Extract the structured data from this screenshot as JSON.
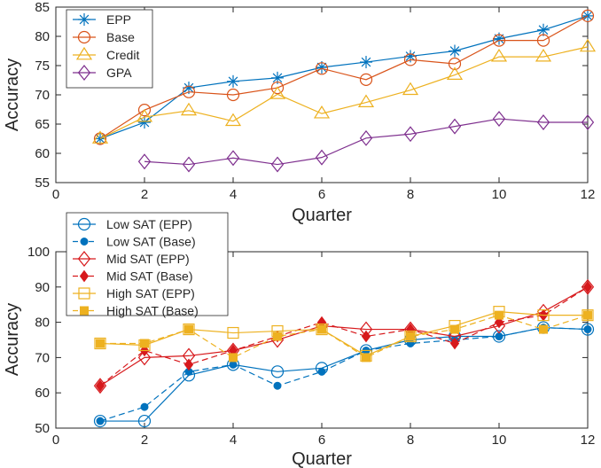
{
  "chart_data": [
    {
      "type": "line",
      "title": "",
      "xlabel": "Quarter",
      "ylabel": "Accuracy",
      "xlim": [
        0,
        12
      ],
      "ylim": [
        55,
        85
      ],
      "xticks": [
        0,
        2,
        4,
        6,
        8,
        10,
        12
      ],
      "yticks": [
        55,
        60,
        65,
        70,
        75,
        80,
        85
      ],
      "legend_position": "top-left",
      "grid": false,
      "series": [
        {
          "name": "EPP",
          "color": "#0072BD",
          "marker": "asterisk",
          "line": "solid",
          "x": [
            1,
            2,
            3,
            4,
            5,
            6,
            7,
            8,
            9,
            10,
            11,
            12
          ],
          "values": [
            62.5,
            65.3,
            71.2,
            72.3,
            72.9,
            74.7,
            75.6,
            76.6,
            77.5,
            79.6,
            81.1,
            83.5
          ]
        },
        {
          "name": "Base",
          "color": "#D95319",
          "marker": "circle",
          "line": "solid",
          "x": [
            1,
            2,
            3,
            4,
            5,
            6,
            7,
            8,
            9,
            10,
            11,
            12
          ],
          "values": [
            62.5,
            67.4,
            70.5,
            70.0,
            71.2,
            74.5,
            72.6,
            76.0,
            75.3,
            79.3,
            79.3,
            83.5
          ]
        },
        {
          "name": "Credit",
          "color": "#EDB120",
          "marker": "triangle",
          "line": "solid",
          "x": [
            1,
            2,
            3,
            4,
            5,
            6,
            7,
            8,
            9,
            10,
            11,
            12
          ],
          "values": [
            62.5,
            66.2,
            67.3,
            65.5,
            70.1,
            66.8,
            68.7,
            70.8,
            73.4,
            76.5,
            76.5,
            78.2
          ]
        },
        {
          "name": "GPA",
          "color": "#7E2F8E",
          "marker": "diamond",
          "line": "solid",
          "x": [
            2,
            3,
            4,
            5,
            6,
            7,
            8,
            9,
            10,
            11,
            12
          ],
          "values": [
            58.6,
            58.1,
            59.2,
            58.1,
            59.3,
            62.6,
            63.3,
            64.6,
            65.9,
            65.3,
            65.3
          ]
        }
      ]
    },
    {
      "type": "line",
      "title": "",
      "xlabel": "Quarter",
      "ylabel": "Accuracy",
      "xlim": [
        0,
        12
      ],
      "ylim": [
        50,
        100
      ],
      "xticks": [
        0,
        2,
        4,
        6,
        8,
        10,
        12
      ],
      "yticks": [
        50,
        60,
        70,
        80,
        90,
        100
      ],
      "legend_position": "top-left",
      "grid": false,
      "series": [
        {
          "name": "Low SAT (EPP)",
          "color": "#0072BD",
          "marker": "open-circle",
          "line": "solid",
          "x": [
            1,
            2,
            3,
            4,
            5,
            6,
            7,
            8,
            9,
            10,
            11,
            12
          ],
          "values": [
            52,
            52,
            65,
            68,
            66,
            67,
            72,
            75,
            76,
            76,
            78.5,
            78
          ]
        },
        {
          "name": "Low SAT (Base)",
          "color": "#0072BD",
          "marker": "filled-circle",
          "line": "dashed",
          "x": [
            1,
            2,
            3,
            4,
            5,
            6,
            7,
            8,
            9,
            10,
            11,
            12
          ],
          "values": [
            52,
            56,
            66,
            68,
            62,
            66,
            72,
            74,
            75,
            76,
            78.5,
            78
          ]
        },
        {
          "name": "Mid SAT (EPP)",
          "color": "#D7191C",
          "marker": "open-diamond",
          "line": "solid",
          "x": [
            1,
            2,
            3,
            4,
            5,
            6,
            7,
            8,
            9,
            10,
            11,
            12
          ],
          "values": [
            62,
            70,
            70.5,
            72,
            75,
            79,
            78,
            78,
            76,
            79,
            83,
            90
          ]
        },
        {
          "name": "Mid SAT (Base)",
          "color": "#D7191C",
          "marker": "filled-diamond",
          "line": "dashed",
          "x": [
            1,
            2,
            3,
            4,
            5,
            6,
            7,
            8,
            9,
            10,
            11,
            12
          ],
          "values": [
            62,
            72,
            68,
            72,
            76,
            80,
            76,
            78,
            74,
            80,
            82,
            90
          ]
        },
        {
          "name": "High SAT (EPP)",
          "color": "#EDB120",
          "marker": "open-square",
          "line": "solid",
          "x": [
            1,
            2,
            3,
            4,
            5,
            6,
            7,
            8,
            9,
            10,
            11,
            12
          ],
          "values": [
            74,
            73.5,
            78,
            77,
            77.5,
            78,
            70.5,
            76,
            79,
            83,
            82,
            82
          ]
        },
        {
          "name": "High SAT (Base)",
          "color": "#EDB120",
          "marker": "filled-square",
          "line": "dashed",
          "x": [
            1,
            2,
            3,
            4,
            5,
            6,
            7,
            8,
            9,
            10,
            11,
            12
          ],
          "values": [
            74,
            74,
            78,
            70,
            76,
            78,
            70,
            76,
            78,
            82,
            78,
            82
          ]
        }
      ]
    }
  ]
}
